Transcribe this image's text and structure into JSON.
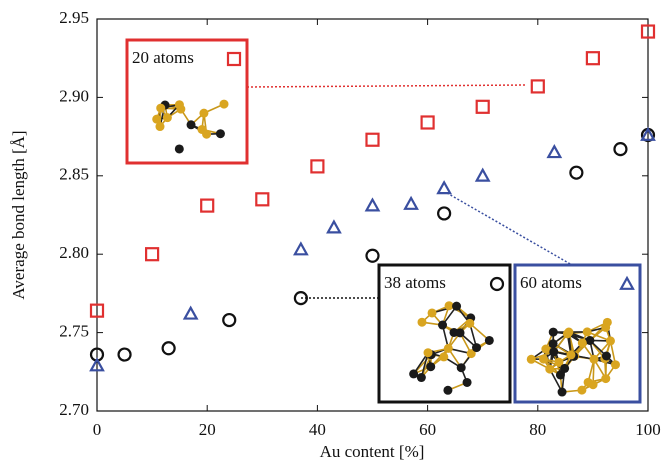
{
  "chart_data": {
    "type": "scatter",
    "xlabel": "Au content [%]",
    "ylabel": "Average bond length [Å]",
    "xlim": [
      0,
      100
    ],
    "xticks": [
      0,
      20,
      40,
      60,
      80,
      100
    ],
    "ylim": [
      2.7,
      2.95
    ],
    "yticks": [
      {
        "value": 2.7,
        "label": "2.70"
      },
      2.75,
      {
        "value": 2.8,
        "label": "2.80"
      },
      2.85,
      {
        "value": 2.9,
        "label": "2.90"
      },
      2.95
    ],
    "series": [
      {
        "name": "20 atoms",
        "color": "#e03030",
        "marker": "square",
        "x": [
          0,
          10,
          20,
          30,
          40,
          50,
          60,
          70,
          80,
          90,
          100
        ],
        "values": [
          2.764,
          2.8,
          2.831,
          2.835,
          2.856,
          2.873,
          2.884,
          2.894,
          2.907,
          2.925,
          2.942
        ]
      },
      {
        "name": "38 atoms",
        "color": "#111111",
        "marker": "circle",
        "x": [
          0,
          5,
          13,
          24,
          37,
          50,
          63,
          87,
          95,
          100
        ],
        "values": [
          2.736,
          2.736,
          2.74,
          2.758,
          2.772,
          2.799,
          2.826,
          2.852,
          2.867,
          2.876
        ]
      },
      {
        "name": "60 atoms",
        "color": "#3a4fa0",
        "marker": "triangle",
        "x": [
          0,
          17,
          37,
          43,
          50,
          57,
          63,
          70,
          83,
          100
        ],
        "values": [
          2.729,
          2.762,
          2.803,
          2.817,
          2.831,
          2.832,
          2.842,
          2.85,
          2.865,
          2.876
        ]
      }
    ]
  }
}
